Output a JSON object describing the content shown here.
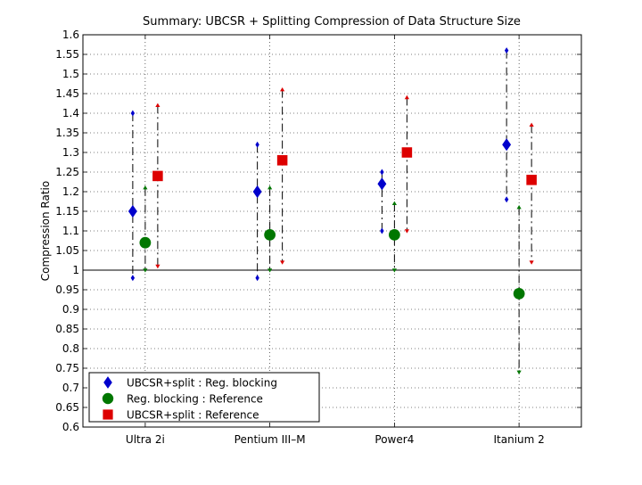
{
  "chart_data": {
    "type": "scatter",
    "title": "Summary: UBCSR + Splitting Compression of Data Structure Size",
    "xlabel": "",
    "ylabel": "Compression Ratio",
    "ylim": [
      0.6,
      1.6
    ],
    "yticks": [
      "0.6",
      "0.65",
      "0.7",
      "0.75",
      "0.8",
      "0.85",
      "0.9",
      "0.95",
      "1",
      "1.05",
      "1.1",
      "1.15",
      "1.2",
      "1.25",
      "1.3",
      "1.35",
      "1.4",
      "1.45",
      "1.5",
      "1.55",
      "1.6"
    ],
    "categories": [
      "Ultra 2i",
      "Pentium III–M",
      "Power4",
      "Itanium 2"
    ],
    "reference_line": 1.0,
    "grid": true,
    "legend_position": "bottom-left",
    "series": [
      {
        "name": "UBCSR+split : Reg. blocking",
        "color": "#0000cc",
        "marker": "diamond",
        "values": [
          1.15,
          1.2,
          1.22,
          1.32
        ],
        "min": [
          0.98,
          0.98,
          1.1,
          1.18
        ],
        "max": [
          1.4,
          1.32,
          1.25,
          1.56
        ]
      },
      {
        "name": "Reg. blocking : Reference",
        "color": "#007700",
        "marker": "circle",
        "values": [
          1.07,
          1.09,
          1.09,
          0.94
        ],
        "min": [
          1.0,
          1.0,
          1.0,
          0.74
        ],
        "max": [
          1.21,
          1.21,
          1.17,
          1.16
        ]
      },
      {
        "name": "UBCSR+split : Reference",
        "color": "#dd0000",
        "marker": "square",
        "values": [
          1.24,
          1.28,
          1.3,
          1.23
        ],
        "min": [
          1.01,
          1.02,
          1.1,
          1.02
        ],
        "max": [
          1.42,
          1.46,
          1.44,
          1.37
        ]
      }
    ]
  }
}
